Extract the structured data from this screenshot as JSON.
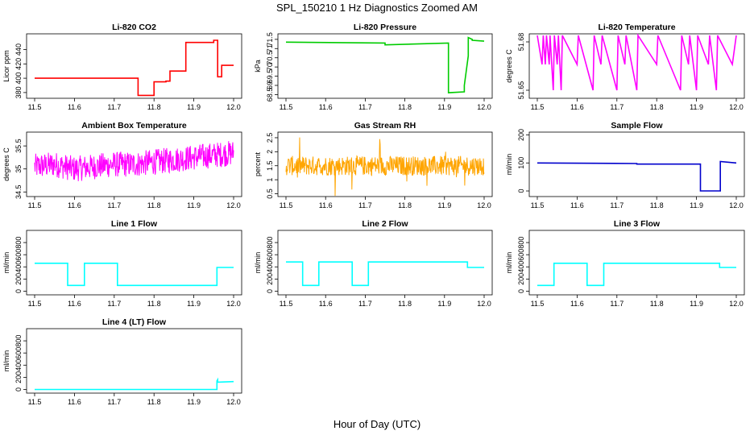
{
  "figure": {
    "title": "SPL_150210  1 Hz Diagnostics Zoomed AM",
    "xlabel": "Hour of Day (UTC)"
  },
  "chart_data": [
    {
      "type": "line",
      "title": "Li-820 CO2",
      "xlabel": "",
      "ylabel": "Licor ppm",
      "color": "#ff0000",
      "xlim": [
        11.5,
        12.0
      ],
      "ylim": [
        372,
        462
      ],
      "xticks": [
        11.5,
        11.6,
        11.7,
        11.8,
        11.9,
        12.0
      ],
      "yticks": [
        380,
        400,
        420,
        440
      ],
      "series": [
        {
          "x": [
            11.5,
            11.76,
            11.76,
            11.8,
            11.8,
            11.83,
            11.83,
            11.84,
            11.84,
            11.88,
            11.88,
            11.95,
            11.95,
            11.96,
            11.96,
            11.97,
            11.97,
            12.0
          ],
          "values": [
            400,
            400,
            376,
            376,
            395,
            395,
            396,
            396,
            410,
            410,
            450,
            450,
            453,
            453,
            402,
            402,
            418,
            418
          ]
        }
      ]
    },
    {
      "type": "line",
      "title": "Li-820 Pressure",
      "xlabel": "",
      "ylabel": "kPa",
      "color": "#00cc00",
      "xlim": [
        11.5,
        12.0
      ],
      "ylim": [
        68.3,
        71.8
      ],
      "xticks": [
        11.5,
        11.6,
        11.7,
        11.8,
        11.9,
        12.0
      ],
      "yticks": [
        68.5,
        69.0,
        69.5,
        70.0,
        70.5,
        71.0,
        71.5
      ],
      "series": [
        {
          "x": [
            11.5,
            11.75,
            11.75,
            11.91,
            11.91,
            11.95,
            11.95,
            11.96,
            11.96,
            11.97,
            11.97,
            12.0
          ],
          "values": [
            71.35,
            71.3,
            71.2,
            71.3,
            68.6,
            68.65,
            69.0,
            70.6,
            71.6,
            71.5,
            71.45,
            71.4
          ]
        }
      ]
    },
    {
      "type": "line",
      "title": "Li-820 Temperature",
      "xlabel": "",
      "ylabel": "degrees C",
      "color": "#ff00ff",
      "xlim": [
        11.5,
        12.0
      ],
      "ylim": [
        51.645,
        51.685
      ],
      "xticks": [
        11.5,
        11.6,
        11.7,
        11.8,
        11.9,
        12.0
      ],
      "yticks": [
        51.65,
        51.68
      ],
      "series": [
        {
          "x": [
            11.5,
            11.512,
            11.515,
            11.52,
            11.523,
            11.53,
            11.532,
            11.54,
            11.543,
            11.55,
            11.553,
            11.56,
            11.563,
            11.6,
            11.603,
            11.64,
            11.643,
            11.66,
            11.663,
            11.7,
            11.703,
            11.72,
            11.723,
            11.75,
            11.753,
            11.8,
            11.803,
            11.86,
            11.863,
            11.88,
            11.883,
            11.9,
            11.903,
            11.93,
            11.933,
            11.95,
            11.953,
            11.99,
            12.0
          ],
          "values": [
            51.684,
            51.666,
            51.684,
            51.666,
            51.684,
            51.666,
            51.684,
            51.65,
            51.684,
            51.666,
            51.684,
            51.65,
            51.684,
            51.666,
            51.684,
            51.65,
            51.684,
            51.666,
            51.684,
            51.65,
            51.684,
            51.666,
            51.684,
            51.65,
            51.684,
            51.666,
            51.684,
            51.65,
            51.684,
            51.666,
            51.684,
            51.65,
            51.684,
            51.666,
            51.684,
            51.65,
            51.684,
            51.666,
            51.684
          ]
        }
      ]
    },
    {
      "type": "line",
      "title": "Ambient Box Temperature",
      "xlabel": "",
      "ylabel": "degrees C",
      "color": "#ff00ff",
      "xlim": [
        11.5,
        12.0
      ],
      "ylim": [
        34.4,
        35.8
      ],
      "xticks": [
        11.5,
        11.6,
        11.7,
        11.8,
        11.9,
        12.0
      ],
      "yticks": [
        34.5,
        35.0,
        35.5
      ],
      "series": [
        {
          "x": [
            11.5,
            11.55,
            11.6,
            11.65,
            11.7,
            11.75,
            11.8,
            11.85,
            11.9,
            11.95,
            12.0
          ],
          "values": [
            35.05,
            35.1,
            35.0,
            35.05,
            35.1,
            35.1,
            35.15,
            35.2,
            35.25,
            35.3,
            35.35
          ]
        }
      ]
    },
    {
      "type": "line",
      "title": "Gas Stream RH",
      "xlabel": "",
      "ylabel": "percent",
      "color": "#ffa500",
      "xlim": [
        11.5,
        12.0
      ],
      "ylim": [
        0.4,
        2.7
      ],
      "xticks": [
        11.5,
        11.6,
        11.7,
        11.8,
        11.9,
        12.0
      ],
      "yticks": [
        0.5,
        1.0,
        1.5,
        2.0,
        2.5
      ],
      "series": [
        {
          "x": [
            11.5,
            11.55,
            11.6,
            11.65,
            11.7,
            11.75,
            11.8,
            11.85,
            11.9,
            11.95,
            12.0
          ],
          "values": [
            1.5,
            1.5,
            1.5,
            1.5,
            1.5,
            1.5,
            1.5,
            1.5,
            1.5,
            1.5,
            1.5
          ]
        }
      ]
    },
    {
      "type": "line",
      "title": "Sample Flow",
      "xlabel": "",
      "ylabel": "ml/min",
      "color": "#0000cc",
      "xlim": [
        11.5,
        12.0
      ],
      "ylim": [
        -20,
        210
      ],
      "xticks": [
        11.5,
        11.6,
        11.7,
        11.8,
        11.9,
        12.0
      ],
      "yticks": [
        0,
        100,
        200
      ],
      "series": [
        {
          "x": [
            11.5,
            11.75,
            11.75,
            11.91,
            11.91,
            11.95,
            11.95,
            11.96,
            11.96,
            12.0
          ],
          "values": [
            100,
            98,
            96,
            96,
            0,
            0,
            0,
            0,
            105,
            100
          ]
        }
      ]
    },
    {
      "type": "line",
      "title": "Line 1 Flow",
      "xlabel": "",
      "ylabel": "ml/min",
      "color": "#00ffff",
      "xlim": [
        11.5,
        12.0
      ],
      "ylim": [
        -60,
        1000
      ],
      "xticks": [
        11.5,
        11.6,
        11.7,
        11.8,
        11.9,
        12.0
      ],
      "yticks": [
        0,
        200,
        400,
        600,
        800
      ],
      "series": [
        {
          "x": [
            11.5,
            11.583,
            11.583,
            11.625,
            11.625,
            11.708,
            11.708,
            11.958,
            11.958,
            12.0
          ],
          "values": [
            460,
            460,
            95,
            95,
            460,
            460,
            95,
            95,
            390,
            390
          ]
        }
      ]
    },
    {
      "type": "line",
      "title": "Line 2 Flow",
      "xlabel": "",
      "ylabel": "ml/min",
      "color": "#00ffff",
      "xlim": [
        11.5,
        12.0
      ],
      "ylim": [
        -60,
        1000
      ],
      "xticks": [
        11.5,
        11.6,
        11.7,
        11.8,
        11.9,
        12.0
      ],
      "yticks": [
        0,
        200,
        400,
        600,
        800
      ],
      "series": [
        {
          "x": [
            11.5,
            11.542,
            11.542,
            11.583,
            11.583,
            11.667,
            11.667,
            11.708,
            11.708,
            11.958,
            11.958,
            12.0
          ],
          "values": [
            480,
            480,
            95,
            95,
            480,
            480,
            95,
            95,
            480,
            480,
            390,
            390
          ]
        }
      ]
    },
    {
      "type": "line",
      "title": "Line 3 Flow",
      "xlabel": "",
      "ylabel": "ml/min",
      "color": "#00ffff",
      "xlim": [
        11.5,
        12.0
      ],
      "ylim": [
        -60,
        1000
      ],
      "xticks": [
        11.5,
        11.6,
        11.7,
        11.8,
        11.9,
        12.0
      ],
      "yticks": [
        0,
        200,
        400,
        600,
        800
      ],
      "series": [
        {
          "x": [
            11.5,
            11.542,
            11.542,
            11.625,
            11.625,
            11.667,
            11.667,
            11.958,
            11.958,
            12.0
          ],
          "values": [
            95,
            95,
            460,
            460,
            95,
            95,
            460,
            460,
            390,
            390
          ]
        }
      ]
    },
    {
      "type": "line",
      "title": "Line 4 (LT) Flow",
      "xlabel": "",
      "ylabel": "ml/min",
      "color": "#00ffff",
      "xlim": [
        11.5,
        12.0
      ],
      "ylim": [
        -60,
        1000
      ],
      "xticks": [
        11.5,
        11.6,
        11.7,
        11.8,
        11.9,
        12.0
      ],
      "yticks": [
        0,
        200,
        400,
        600,
        800
      ],
      "series": [
        {
          "x": [
            11.5,
            11.958,
            11.958,
            11.96,
            11.96,
            12.0
          ],
          "values": [
            0,
            0,
            140,
            160,
            120,
            130
          ]
        }
      ]
    }
  ]
}
